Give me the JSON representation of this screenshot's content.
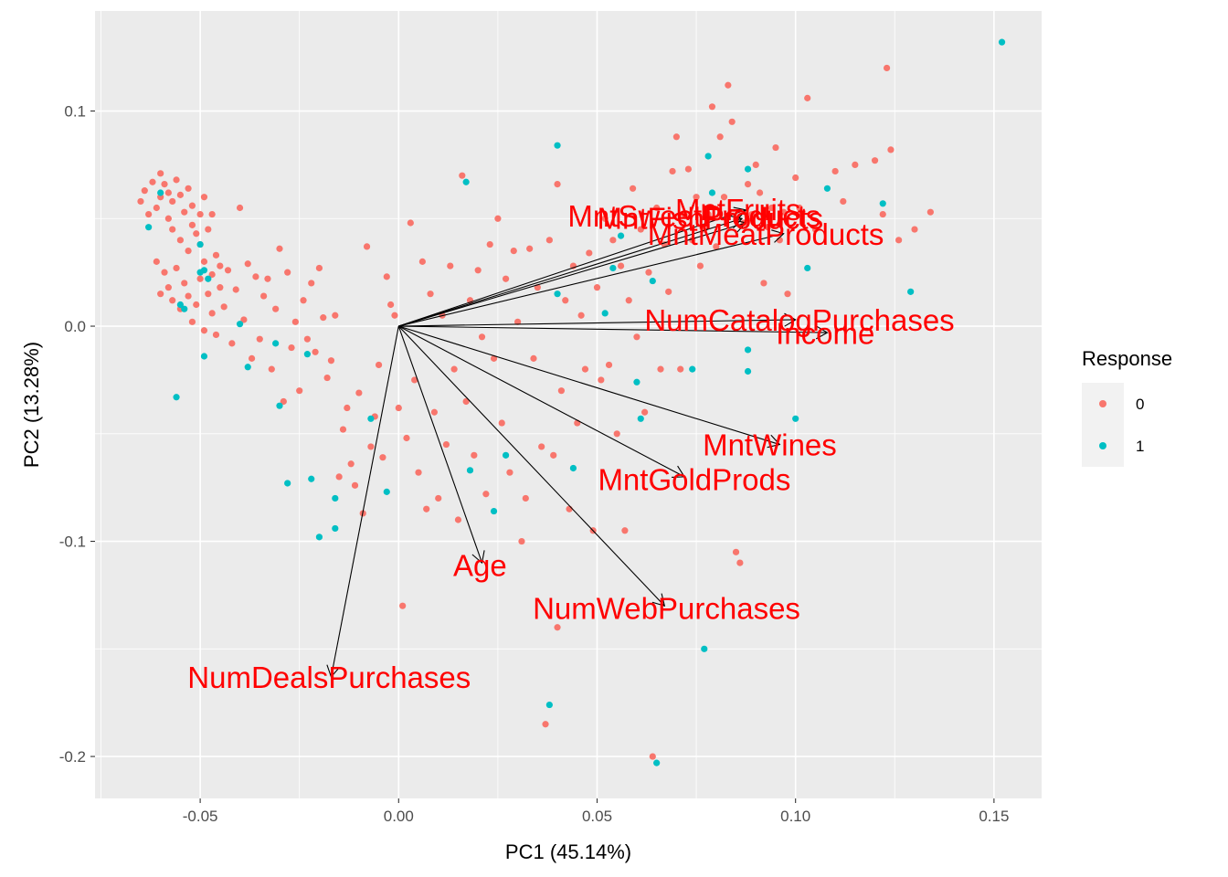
{
  "chart_data": {
    "type": "scatter",
    "xlabel": "PC1 (45.14%)",
    "ylabel": "PC2 (13.28%)",
    "xlim": [
      -0.0765,
      0.162
    ],
    "ylim": [
      -0.2195,
      0.1465
    ],
    "x_ticks": [
      -0.05,
      0.0,
      0.05,
      0.1,
      0.15
    ],
    "x_tick_labels": [
      "-0.05",
      "0.00",
      "0.05",
      "0.10",
      "0.15"
    ],
    "y_ticks": [
      -0.2,
      -0.1,
      0.0,
      0.1
    ],
    "y_tick_labels": [
      "-0.2",
      "-0.1",
      "0.0",
      "0.1"
    ],
    "grid": true,
    "legend": {
      "title": "Response",
      "position": "right",
      "entries": [
        {
          "label": "0",
          "color": "#F8766D"
        },
        {
          "label": "1",
          "color": "#00BFC4"
        }
      ]
    },
    "series": [
      {
        "name": "0",
        "color": "#F8766D",
        "points": [
          [
            -0.065,
            0.058
          ],
          [
            -0.064,
            0.063
          ],
          [
            -0.063,
            0.052
          ],
          [
            -0.062,
            0.067
          ],
          [
            -0.061,
            0.055
          ],
          [
            -0.06,
            0.071
          ],
          [
            -0.06,
            0.06
          ],
          [
            -0.059,
            0.066
          ],
          [
            -0.058,
            0.062
          ],
          [
            -0.058,
            0.05
          ],
          [
            -0.057,
            0.058
          ],
          [
            -0.057,
            0.045
          ],
          [
            -0.056,
            0.068
          ],
          [
            -0.055,
            0.04
          ],
          [
            -0.055,
            0.061
          ],
          [
            -0.054,
            0.053
          ],
          [
            -0.053,
            0.064
          ],
          [
            -0.053,
            0.035
          ],
          [
            -0.052,
            0.047
          ],
          [
            -0.052,
            0.056
          ],
          [
            -0.051,
            0.043
          ],
          [
            -0.05,
            0.052
          ],
          [
            -0.05,
            0.038
          ],
          [
            -0.049,
            0.06
          ],
          [
            -0.049,
            0.03
          ],
          [
            -0.048,
            0.045
          ],
          [
            -0.047,
            0.024
          ],
          [
            -0.047,
            0.052
          ],
          [
            -0.046,
            0.033
          ],
          [
            -0.045,
            0.018
          ],
          [
            -0.061,
            0.03
          ],
          [
            -0.06,
            0.015
          ],
          [
            -0.059,
            0.025
          ],
          [
            -0.058,
            0.018
          ],
          [
            -0.057,
            0.012
          ],
          [
            -0.056,
            0.027
          ],
          [
            -0.055,
            0.008
          ],
          [
            -0.054,
            0.02
          ],
          [
            -0.053,
            0.014
          ],
          [
            -0.052,
            0.002
          ],
          [
            -0.051,
            0.01
          ],
          [
            -0.05,
            0.022
          ],
          [
            -0.049,
            -0.002
          ],
          [
            -0.048,
            0.015
          ],
          [
            -0.047,
            0.006
          ],
          [
            -0.046,
            -0.004
          ],
          [
            -0.045,
            0.028
          ],
          [
            -0.044,
            0.009
          ],
          [
            -0.043,
            0.026
          ],
          [
            -0.042,
            -0.008
          ],
          [
            -0.041,
            0.017
          ],
          [
            -0.04,
            0.055
          ],
          [
            -0.039,
            0.003
          ],
          [
            -0.038,
            0.029
          ],
          [
            -0.037,
            -0.015
          ],
          [
            -0.036,
            0.023
          ],
          [
            -0.035,
            -0.006
          ],
          [
            -0.034,
            0.014
          ],
          [
            -0.033,
            0.022
          ],
          [
            -0.032,
            -0.02
          ],
          [
            -0.031,
            0.008
          ],
          [
            -0.03,
            0.036
          ],
          [
            -0.029,
            -0.035
          ],
          [
            -0.028,
            0.025
          ],
          [
            -0.027,
            -0.01
          ],
          [
            -0.026,
            0.002
          ],
          [
            -0.025,
            -0.03
          ],
          [
            -0.024,
            0.012
          ],
          [
            -0.023,
            -0.006
          ],
          [
            -0.022,
            0.02
          ],
          [
            -0.021,
            -0.012
          ],
          [
            -0.02,
            0.027
          ],
          [
            -0.019,
            0.004
          ],
          [
            -0.018,
            -0.024
          ],
          [
            -0.017,
            -0.016
          ],
          [
            -0.016,
            0.005
          ],
          [
            -0.015,
            -0.07
          ],
          [
            -0.014,
            -0.048
          ],
          [
            -0.013,
            -0.038
          ],
          [
            -0.012,
            -0.064
          ],
          [
            -0.011,
            -0.074
          ],
          [
            -0.01,
            -0.031
          ],
          [
            -0.009,
            -0.087
          ],
          [
            -0.008,
            0.037
          ],
          [
            -0.007,
            -0.056
          ],
          [
            -0.006,
            -0.042
          ],
          [
            -0.005,
            -0.018
          ],
          [
            -0.004,
            -0.061
          ],
          [
            -0.003,
            0.023
          ],
          [
            -0.002,
            0.01
          ],
          [
            -0.001,
            0.005
          ],
          [
            0.0,
            -0.038
          ],
          [
            0.001,
            -0.13
          ],
          [
            0.002,
            -0.052
          ],
          [
            0.003,
            0.048
          ],
          [
            0.004,
            -0.025
          ],
          [
            0.005,
            -0.068
          ],
          [
            0.006,
            0.03
          ],
          [
            0.007,
            -0.085
          ],
          [
            0.008,
            0.015
          ],
          [
            0.009,
            -0.04
          ],
          [
            0.01,
            -0.08
          ],
          [
            0.011,
            0.005
          ],
          [
            0.012,
            -0.055
          ],
          [
            0.013,
            0.028
          ],
          [
            0.014,
            -0.02
          ],
          [
            0.015,
            -0.09
          ],
          [
            0.016,
            0.07
          ],
          [
            0.017,
            -0.035
          ],
          [
            0.018,
            0.012
          ],
          [
            0.019,
            -0.06
          ],
          [
            0.02,
            0.026
          ],
          [
            0.021,
            -0.005
          ],
          [
            0.022,
            -0.078
          ],
          [
            0.023,
            0.038
          ],
          [
            0.024,
            -0.015
          ],
          [
            0.025,
            0.05
          ],
          [
            0.026,
            -0.045
          ],
          [
            0.027,
            0.022
          ],
          [
            0.028,
            -0.068
          ],
          [
            0.029,
            0.035
          ],
          [
            0.03,
            0.002
          ],
          [
            0.031,
            -0.1
          ],
          [
            0.032,
            -0.08
          ],
          [
            0.033,
            0.036
          ],
          [
            0.034,
            -0.015
          ],
          [
            0.035,
            0.018
          ],
          [
            0.036,
            -0.056
          ],
          [
            0.037,
            -0.185
          ],
          [
            0.038,
            0.04
          ],
          [
            0.039,
            -0.06
          ],
          [
            0.04,
            0.066
          ],
          [
            0.04,
            -0.14
          ],
          [
            0.041,
            -0.03
          ],
          [
            0.042,
            0.012
          ],
          [
            0.043,
            -0.085
          ],
          [
            0.044,
            0.028
          ],
          [
            0.045,
            -0.045
          ],
          [
            0.046,
            0.005
          ],
          [
            0.047,
            -0.02
          ],
          [
            0.048,
            0.034
          ],
          [
            0.049,
            -0.095
          ],
          [
            0.05,
            0.018
          ],
          [
            0.051,
            -0.025
          ],
          [
            0.052,
            0.05
          ],
          [
            0.053,
            -0.018
          ],
          [
            0.054,
            0.04
          ],
          [
            0.055,
            -0.05
          ],
          [
            0.056,
            0.028
          ],
          [
            0.057,
            -0.095
          ],
          [
            0.058,
            0.012
          ],
          [
            0.059,
            0.064
          ],
          [
            0.06,
            -0.005
          ],
          [
            0.061,
            0.045
          ],
          [
            0.062,
            -0.04
          ],
          [
            0.063,
            0.025
          ],
          [
            0.064,
            -0.2
          ],
          [
            0.065,
            0.055
          ],
          [
            0.066,
            -0.02
          ],
          [
            0.067,
            0.038
          ],
          [
            0.068,
            0.016
          ],
          [
            0.069,
            0.072
          ],
          [
            0.07,
            0.088
          ],
          [
            0.071,
            -0.02
          ],
          [
            0.072,
            0.052
          ],
          [
            0.073,
            0.073
          ],
          [
            0.074,
            0.04
          ],
          [
            0.075,
            0.06
          ],
          [
            0.076,
            0.028
          ],
          [
            0.077,
            0.045
          ],
          [
            0.078,
            0.052
          ],
          [
            0.079,
            0.102
          ],
          [
            0.08,
            0.037
          ],
          [
            0.081,
            0.088
          ],
          [
            0.082,
            0.06
          ],
          [
            0.083,
            0.112
          ],
          [
            0.084,
            0.095
          ],
          [
            0.085,
            -0.105
          ],
          [
            0.086,
            -0.11
          ],
          [
            0.087,
            0.048
          ],
          [
            0.088,
            0.066
          ],
          [
            0.089,
            0.052
          ],
          [
            0.09,
            0.075
          ],
          [
            0.091,
            0.062
          ],
          [
            0.092,
            0.02
          ],
          [
            0.093,
            0.046
          ],
          [
            0.094,
            0.055
          ],
          [
            0.095,
            0.083
          ],
          [
            0.096,
            0.04
          ],
          [
            0.097,
            0.053
          ],
          [
            0.098,
            0.015
          ],
          [
            0.1,
            0.069
          ],
          [
            0.101,
            0.055
          ],
          [
            0.103,
            0.106
          ],
          [
            0.105,
            0.045
          ],
          [
            0.11,
            0.072
          ],
          [
            0.112,
            0.058
          ],
          [
            0.115,
            0.075
          ],
          [
            0.12,
            0.077
          ],
          [
            0.122,
            0.052
          ],
          [
            0.123,
            0.12
          ],
          [
            0.124,
            0.082
          ],
          [
            0.126,
            0.04
          ],
          [
            0.13,
            0.045
          ],
          [
            0.134,
            0.053
          ]
        ]
      },
      {
        "name": "1",
        "color": "#00BFC4",
        "points": [
          [
            -0.063,
            0.046
          ],
          [
            -0.06,
            0.062
          ],
          [
            -0.055,
            0.01
          ],
          [
            -0.054,
            0.008
          ],
          [
            -0.05,
            0.025
          ],
          [
            -0.05,
            0.038
          ],
          [
            -0.049,
            0.026
          ],
          [
            -0.049,
            -0.014
          ],
          [
            -0.048,
            0.022
          ],
          [
            -0.056,
            -0.033
          ],
          [
            -0.04,
            0.001
          ],
          [
            -0.038,
            -0.019
          ],
          [
            -0.03,
            -0.037
          ],
          [
            -0.031,
            -0.008
          ],
          [
            -0.023,
            -0.013
          ],
          [
            -0.028,
            -0.073
          ],
          [
            -0.022,
            -0.071
          ],
          [
            -0.02,
            -0.098
          ],
          [
            -0.016,
            -0.08
          ],
          [
            -0.016,
            -0.094
          ],
          [
            -0.007,
            -0.043
          ],
          [
            -0.003,
            -0.077
          ],
          [
            0.017,
            0.067
          ],
          [
            0.018,
            -0.067
          ],
          [
            0.024,
            -0.086
          ],
          [
            0.027,
            -0.06
          ],
          [
            0.038,
            -0.176
          ],
          [
            0.04,
            0.084
          ],
          [
            0.04,
            0.015
          ],
          [
            0.044,
            -0.066
          ],
          [
            0.052,
            0.006
          ],
          [
            0.054,
            0.027
          ],
          [
            0.056,
            0.042
          ],
          [
            0.06,
            -0.026
          ],
          [
            0.061,
            -0.043
          ],
          [
            0.064,
            0.021
          ],
          [
            0.065,
            -0.203
          ],
          [
            0.074,
            -0.02
          ],
          [
            0.077,
            -0.15
          ],
          [
            0.078,
            0.079
          ],
          [
            0.079,
            0.062
          ],
          [
            0.088,
            0.073
          ],
          [
            0.088,
            -0.021
          ],
          [
            0.088,
            -0.011
          ],
          [
            0.1,
            -0.043
          ],
          [
            0.103,
            0.027
          ],
          [
            0.108,
            0.064
          ],
          [
            0.122,
            0.057
          ],
          [
            0.129,
            0.016
          ],
          [
            0.152,
            0.132
          ]
        ]
      }
    ],
    "loadings": [
      {
        "label": "MntFruits",
        "x": 0.0875,
        "y": 0.054
      },
      {
        "label": "MntSweetProducts",
        "x": 0.0865,
        "y": 0.05
      },
      {
        "label": "MntFishProducts",
        "x": 0.0875,
        "y": 0.048
      },
      {
        "label": "MntMeatProducts",
        "x": 0.097,
        "y": 0.043
      },
      {
        "label": "NumCatalogPurchases",
        "x": 0.1,
        "y": 0.003
      },
      {
        "label": "Income",
        "x": 0.108,
        "y": -0.003
      },
      {
        "label": "MntWines",
        "x": 0.096,
        "y": -0.055
      },
      {
        "label": "MntGoldProds",
        "x": 0.072,
        "y": -0.07
      },
      {
        "label": "Age",
        "x": 0.021,
        "y": -0.11
      },
      {
        "label": "NumWebPurchases",
        "x": 0.067,
        "y": -0.13
      },
      {
        "label": "NumDealsPurchases",
        "x": -0.017,
        "y": -0.163
      }
    ],
    "loading_labels": [
      {
        "text": "MntFruits",
        "x": 0.0855,
        "y": 0.054
      },
      {
        "text": "MntSweetProducts",
        "x": 0.0745,
        "y": 0.051
      },
      {
        "text": "MntFishProducts",
        "x": 0.0785,
        "y": 0.05
      },
      {
        "text": "MntMeatProducts",
        "x": 0.0925,
        "y": 0.0425
      },
      {
        "text": "NumCatalogPurchases",
        "x": 0.101,
        "y": 0.0025
      },
      {
        "text": "Income",
        "x": 0.1075,
        "y": -0.0035
      },
      {
        "text": "MntWines",
        "x": 0.0935,
        "y": -0.0555
      },
      {
        "text": "MntGoldProds",
        "x": 0.0745,
        "y": -0.0715
      },
      {
        "text": "Age",
        "x": 0.0205,
        "y": -0.1115
      },
      {
        "text": "NumWebPurchases",
        "x": 0.0675,
        "y": -0.1315
      },
      {
        "text": "NumDealsPurchases",
        "x": -0.0175,
        "y": -0.1635
      }
    ],
    "arrow_color": "#000000",
    "label_color": "#FF0000"
  }
}
